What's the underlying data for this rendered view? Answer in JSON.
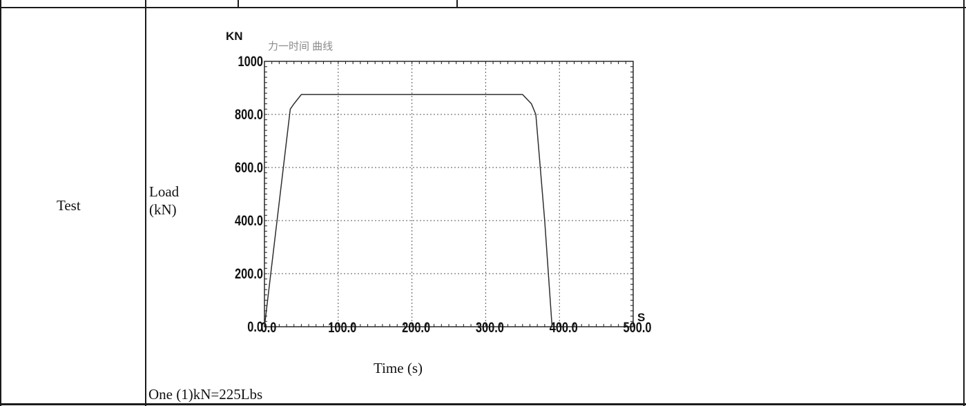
{
  "row_label": "Test",
  "y_axis_title": "Load\n(kN)",
  "x_axis_title": "Time (s)",
  "conversion_note": "One (1)kN=225Lbs",
  "colors": {
    "line": "#2e2e2e",
    "grid": "#555555",
    "border": "#1a1a1a",
    "plot_title": "#8a8a8a"
  },
  "chart_data": {
    "type": "line",
    "title": "力一时间 曲线",
    "y_unit": "KN",
    "x_unit": "S",
    "xlim": [
      0,
      500
    ],
    "ylim": [
      0,
      1000
    ],
    "x_ticks": [
      "0.0",
      "100.0",
      "200.0",
      "300.0",
      "400.0",
      "500.0"
    ],
    "y_ticks": [
      "0.0",
      "200.0",
      "400.0",
      "600.0",
      "800.0",
      "1000"
    ],
    "grid": true,
    "legend": "none",
    "series": [
      {
        "x": [
          0,
          35,
          40,
          50,
          300,
          350,
          362,
          368,
          380,
          390
        ],
        "y": [
          0,
          820,
          840,
          875,
          875,
          875,
          840,
          800,
          400,
          0
        ]
      }
    ]
  }
}
